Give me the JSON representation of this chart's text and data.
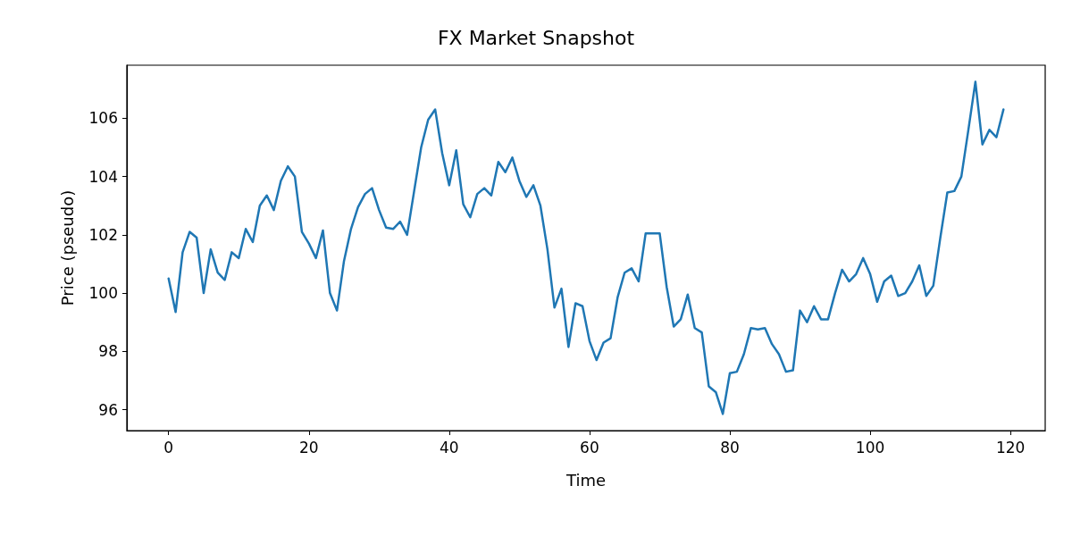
{
  "chart_data": {
    "type": "line",
    "title": "FX Market Snapshot",
    "xlabel": "Time",
    "ylabel": "Price (pseudo)",
    "x": [
      0,
      1,
      2,
      3,
      4,
      5,
      6,
      7,
      8,
      9,
      10,
      11,
      12,
      13,
      14,
      15,
      16,
      17,
      18,
      19,
      20,
      21,
      22,
      23,
      24,
      25,
      26,
      27,
      28,
      29,
      30,
      31,
      32,
      33,
      34,
      35,
      36,
      37,
      38,
      39,
      40,
      41,
      42,
      43,
      44,
      45,
      46,
      47,
      48,
      49,
      50,
      51,
      52,
      53,
      54,
      55,
      56,
      57,
      58,
      59,
      60,
      61,
      62,
      63,
      64,
      65,
      66,
      67,
      68,
      69,
      70,
      71,
      72,
      73,
      74,
      75,
      76,
      77,
      78,
      79,
      80,
      81,
      82,
      83,
      84,
      85,
      86,
      87,
      88,
      89,
      90,
      91,
      92,
      93,
      94,
      95,
      96,
      97,
      98,
      99,
      100,
      101,
      102,
      103,
      104,
      105,
      106,
      107,
      108,
      109,
      110,
      111,
      112,
      113,
      114,
      115,
      116,
      117,
      118,
      119
    ],
    "series": [
      {
        "color": "#1f77b4",
        "values": [
          100.5,
          99.35,
          101.4,
          102.1,
          101.9,
          100.0,
          101.5,
          100.7,
          100.45,
          101.4,
          101.2,
          102.2,
          101.75,
          103.0,
          103.35,
          102.85,
          103.85,
          104.35,
          104.0,
          102.1,
          101.7,
          101.2,
          102.15,
          100.0,
          99.4,
          101.1,
          102.2,
          102.95,
          103.4,
          103.6,
          102.85,
          102.25,
          102.2,
          102.45,
          102.0,
          103.5,
          105.0,
          105.95,
          106.3,
          104.8,
          103.7,
          104.9,
          103.05,
          102.6,
          103.4,
          103.6,
          103.35,
          104.5,
          104.15,
          104.65,
          103.85,
          103.3,
          103.7,
          103.0,
          101.5,
          99.5,
          100.15,
          98.15,
          99.65,
          99.55,
          98.35,
          97.7,
          98.3,
          98.45,
          99.85,
          100.7,
          100.85,
          100.4,
          102.05,
          102.05,
          102.05,
          100.2,
          98.85,
          99.1,
          99.95,
          98.8,
          98.65,
          96.8,
          96.6,
          95.85,
          97.25,
          97.3,
          97.9,
          98.8,
          98.75,
          98.8,
          98.25,
          97.9,
          97.3,
          97.35,
          99.4,
          99.0,
          99.55,
          99.1,
          99.1,
          100.0,
          100.8,
          100.4,
          100.65,
          101.2,
          100.65,
          99.7,
          100.4,
          100.6,
          99.9,
          100.0,
          100.4,
          100.95,
          99.9,
          100.25,
          101.9,
          103.45,
          103.5,
          104.0,
          105.6,
          107.25,
          105.1,
          105.6,
          105.35,
          106.3
        ]
      }
    ],
    "xlim": [
      -5.95,
      124.95
    ],
    "xticks": [
      0,
      20,
      40,
      60,
      80,
      100,
      120
    ],
    "ylim": [
      95.28,
      107.82
    ],
    "yticks": [
      96,
      98,
      100,
      102,
      104,
      106
    ],
    "grid": false,
    "marker": "none",
    "line_style": "solid"
  }
}
